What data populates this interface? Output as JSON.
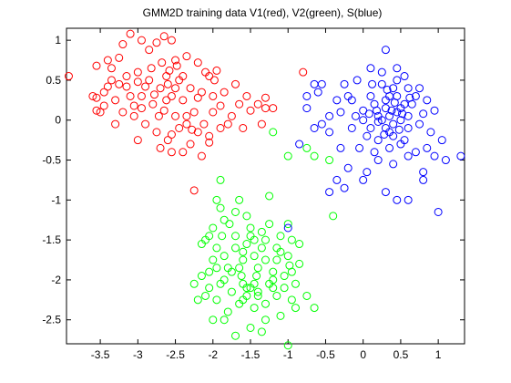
{
  "chart_data": {
    "type": "scatter",
    "title": "GMM2D training data V1(red), V2(green), S(blue)",
    "xlabel": "",
    "ylabel": "",
    "xlim": [
      -3.95,
      1.35
    ],
    "ylim": [
      -2.8,
      1.15
    ],
    "x_ticks": [
      -3.5,
      -3,
      -2.5,
      -2,
      -1.5,
      -1,
      -0.5,
      0,
      0.5,
      1
    ],
    "x_tick_labels": [
      "-3.5",
      "-3",
      "-2.5",
      "-2",
      "-1.5",
      "-1",
      "-0.5",
      "0",
      "0.5",
      "1"
    ],
    "y_ticks": [
      1,
      0.5,
      0,
      -0.5,
      -1,
      -1.5,
      -2,
      -2.5
    ],
    "y_tick_labels": [
      "1",
      "0.5",
      "0",
      "-0.5",
      "-1",
      "-1.5",
      "-2",
      "-2.5"
    ],
    "grid": false,
    "marker": "circle-open",
    "series": [
      {
        "color": "#ff0000",
        "points": [
          [
            -3.92,
            0.55
          ],
          [
            -3.55,
            0.68
          ],
          [
            -3.4,
            0.75
          ],
          [
            -3.35,
            0.65
          ],
          [
            -3.2,
            0.95
          ],
          [
            -3.1,
            1.08
          ],
          [
            -2.95,
            1.0
          ],
          [
            -2.85,
            0.88
          ],
          [
            -2.75,
            0.97
          ],
          [
            -2.65,
            1.05
          ],
          [
            -2.55,
            1.0
          ],
          [
            -2.5,
            0.75
          ],
          [
            -2.58,
            0.62
          ],
          [
            -2.35,
            0.8
          ],
          [
            -2.2,
            0.72
          ],
          [
            -2.1,
            0.6
          ],
          [
            -2.05,
            0.55
          ],
          [
            -1.98,
            0.5
          ],
          [
            -2.15,
            0.35
          ],
          [
            -2.3,
            0.4
          ],
          [
            -2.4,
            0.25
          ],
          [
            -2.55,
            0.3
          ],
          [
            -2.7,
            0.4
          ],
          [
            -2.85,
            0.5
          ],
          [
            -3.0,
            0.6
          ],
          [
            -3.15,
            0.55
          ],
          [
            -3.25,
            0.45
          ],
          [
            -3.35,
            0.5
          ],
          [
            -3.45,
            0.35
          ],
          [
            -3.55,
            0.28
          ],
          [
            -3.3,
            0.25
          ],
          [
            -3.2,
            0.1
          ],
          [
            -3.05,
            0.18
          ],
          [
            -2.95,
            0.3
          ],
          [
            -2.8,
            0.2
          ],
          [
            -2.65,
            0.12
          ],
          [
            -2.5,
            0.05
          ],
          [
            -2.35,
            -0.05
          ],
          [
            -2.2,
            -0.15
          ],
          [
            -2.05,
            -0.2
          ],
          [
            -1.9,
            -0.1
          ],
          [
            -1.75,
            0.05
          ],
          [
            -1.65,
            0.2
          ],
          [
            -1.55,
            0.3
          ],
          [
            -1.4,
            0.2
          ],
          [
            -1.3,
            0.15
          ],
          [
            -1.2,
            0.15
          ],
          [
            -1.35,
            -0.05
          ],
          [
            -1.6,
            -0.1
          ],
          [
            -1.8,
            -0.05
          ],
          [
            -2.0,
            0.1
          ],
          [
            -2.25,
            0.1
          ],
          [
            -2.45,
            -0.1
          ],
          [
            -2.6,
            -0.25
          ],
          [
            -2.75,
            -0.15
          ],
          [
            -3.0,
            -0.25
          ],
          [
            -3.3,
            -0.05
          ],
          [
            -3.5,
            0.1
          ],
          [
            -3.6,
            0.3
          ],
          [
            -2.3,
            -0.3
          ],
          [
            -2.4,
            -0.4
          ],
          [
            -2.15,
            -0.45
          ],
          [
            -2.55,
            -0.4
          ],
          [
            -2.7,
            -0.35
          ],
          [
            -2.9,
            -0.05
          ],
          [
            -2.0,
            0.3
          ],
          [
            -1.85,
            0.35
          ],
          [
            -1.7,
            0.45
          ],
          [
            -3.1,
            0.3
          ],
          [
            -2.62,
            0.55
          ],
          [
            -2.4,
            0.55
          ],
          [
            -2.2,
            0.28
          ],
          [
            -2.95,
            0.15
          ],
          [
            -3.4,
            0.42
          ],
          [
            -3.45,
            0.18
          ],
          [
            -3.55,
            0.12
          ],
          [
            -2.5,
            0.4
          ],
          [
            -2.45,
            0.5
          ],
          [
            -2.6,
            0.45
          ],
          [
            -2.78,
            0.32
          ],
          [
            -2.9,
            0.42
          ],
          [
            -3.05,
            0.05
          ],
          [
            -1.5,
            0.12
          ],
          [
            -2.28,
            -0.12
          ],
          [
            -1.9,
            0.18
          ],
          [
            -2.35,
            0.05
          ],
          [
            -2.12,
            -0.05
          ],
          [
            -2.25,
            -0.88
          ],
          [
            -0.8,
            0.6
          ],
          [
            -1.3,
            0.28
          ],
          [
            -1.95,
            0.62
          ],
          [
            -2.68,
            0.72
          ],
          [
            -2.48,
            0.68
          ],
          [
            -3.25,
            0.78
          ],
          [
            -2.82,
            0.65
          ],
          [
            -2.62,
            0.25
          ],
          [
            -2.72,
            0.05
          ],
          [
            -2.55,
            -0.18
          ],
          [
            -3.0,
            0.48
          ],
          [
            -3.15,
            0.42
          ],
          [
            -2.05,
            -0.28
          ]
        ]
      },
      {
        "color": "#00ff00",
        "points": [
          [
            -1.2,
            -0.15
          ],
          [
            -1.0,
            -0.45
          ],
          [
            -0.75,
            -0.35
          ],
          [
            -0.65,
            -0.45
          ],
          [
            -0.45,
            -0.5
          ],
          [
            -0.4,
            -1.2
          ],
          [
            -1.0,
            -1.3
          ],
          [
            -0.85,
            -1.55
          ],
          [
            -1.1,
            -1.65
          ],
          [
            -1.3,
            -1.5
          ],
          [
            -1.5,
            -1.35
          ],
          [
            -1.7,
            -1.45
          ],
          [
            -1.85,
            -1.25
          ],
          [
            -2.0,
            -1.35
          ],
          [
            -2.15,
            -1.55
          ],
          [
            -2.0,
            -1.75
          ],
          [
            -1.8,
            -1.85
          ],
          [
            -1.6,
            -1.75
          ],
          [
            -1.4,
            -1.85
          ],
          [
            -1.2,
            -1.9
          ],
          [
            -1.05,
            -1.95
          ],
          [
            -0.9,
            -2.05
          ],
          [
            -0.75,
            -2.2
          ],
          [
            -0.9,
            -2.35
          ],
          [
            -1.1,
            -2.45
          ],
          [
            -1.3,
            -2.5
          ],
          [
            -1.5,
            -2.6
          ],
          [
            -1.45,
            -2.35
          ],
          [
            -1.6,
            -2.25
          ],
          [
            -1.75,
            -2.15
          ],
          [
            -1.9,
            -2.05
          ],
          [
            -2.05,
            -2.1
          ],
          [
            -2.2,
            -2.25
          ],
          [
            -2.15,
            -1.95
          ],
          [
            -1.95,
            -1.85
          ],
          [
            -1.7,
            -1.6
          ],
          [
            -1.55,
            -1.55
          ],
          [
            -1.35,
            -1.6
          ],
          [
            -1.15,
            -1.75
          ],
          [
            -0.98,
            -1.82
          ],
          [
            -1.25,
            -2.05
          ],
          [
            -1.4,
            -2.15
          ],
          [
            -1.55,
            -2.1
          ],
          [
            -1.65,
            -2.3
          ],
          [
            -1.8,
            -2.4
          ],
          [
            -2.0,
            -2.5
          ],
          [
            -1.35,
            -2.65
          ],
          [
            -1.0,
            -2.82
          ],
          [
            -0.65,
            -2.35
          ],
          [
            -0.85,
            -1.8
          ],
          [
            -1.65,
            -1.0
          ],
          [
            -1.25,
            -0.95
          ],
          [
            -1.9,
            -0.75
          ],
          [
            -1.95,
            -1.0
          ],
          [
            -2.1,
            -1.5
          ],
          [
            -1.85,
            -2.5
          ],
          [
            -1.7,
            -2.7
          ],
          [
            -1.3,
            -2.3
          ],
          [
            -1.15,
            -2.2
          ],
          [
            -0.95,
            -2.25
          ],
          [
            -1.5,
            -2.1
          ],
          [
            -1.45,
            -2.05
          ],
          [
            -1.6,
            -2.05
          ],
          [
            -1.55,
            -2.2
          ],
          [
            -1.4,
            -2.2
          ],
          [
            -1.2,
            -2.1
          ],
          [
            -1.75,
            -1.9
          ],
          [
            -1.62,
            -1.95
          ],
          [
            -1.95,
            -1.6
          ],
          [
            -2.05,
            -1.45
          ],
          [
            -1.88,
            -1.45
          ],
          [
            -1.78,
            -1.3
          ],
          [
            -1.55,
            -1.2
          ],
          [
            -1.45,
            -1.5
          ],
          [
            -1.25,
            -1.3
          ],
          [
            -1.1,
            -1.45
          ],
          [
            -0.95,
            -1.5
          ],
          [
            -1.0,
            -1.7
          ],
          [
            -1.3,
            -1.75
          ],
          [
            -1.45,
            -1.7
          ],
          [
            -1.6,
            -1.65
          ],
          [
            -1.85,
            -1.7
          ],
          [
            -2.05,
            -1.9
          ],
          [
            -2.25,
            -2.05
          ],
          [
            -2.1,
            -2.2
          ],
          [
            -1.95,
            -2.25
          ],
          [
            -1.85,
            -2.0
          ],
          [
            -1.65,
            -1.85
          ],
          [
            -1.42,
            -1.95
          ],
          [
            -1.2,
            -2.0
          ],
          [
            -1.05,
            -2.1
          ],
          [
            -0.95,
            -1.9
          ],
          [
            -1.15,
            -1.6
          ],
          [
            -1.35,
            -1.4
          ],
          [
            -1.5,
            -1.45
          ],
          [
            -1.7,
            -1.15
          ],
          [
            -1.9,
            -1.1
          ]
        ]
      },
      {
        "color": "#0000ff",
        "points": [
          [
            -1.0,
            -1.35
          ],
          [
            0.1,
            0.65
          ],
          [
            0.3,
            0.88
          ],
          [
            0.45,
            0.65
          ],
          [
            0.55,
            0.55
          ],
          [
            0.7,
            0.3
          ],
          [
            0.85,
            0.25
          ],
          [
            0.95,
            0.12
          ],
          [
            0.8,
            0.08
          ],
          [
            0.6,
            0.05
          ],
          [
            0.45,
            0.1
          ],
          [
            0.3,
            0.15
          ],
          [
            0.2,
            0.05
          ],
          [
            0.1,
            0.3
          ],
          [
            0.0,
            0.12
          ],
          [
            -0.1,
            0.05
          ],
          [
            -0.2,
            0.3
          ],
          [
            -0.35,
            0.25
          ],
          [
            -0.55,
            0.45
          ],
          [
            -0.65,
            0.45
          ],
          [
            -0.75,
            0.3
          ],
          [
            -0.85,
            -0.3
          ],
          [
            -0.65,
            -0.1
          ],
          [
            -0.55,
            -0.05
          ],
          [
            -0.45,
            -0.15
          ],
          [
            -0.3,
            -0.35
          ],
          [
            -0.15,
            -0.1
          ],
          [
            0.05,
            -0.2
          ],
          [
            0.2,
            -0.25
          ],
          [
            0.35,
            -0.15
          ],
          [
            0.5,
            -0.3
          ],
          [
            0.6,
            -0.1
          ],
          [
            0.75,
            -0.05
          ],
          [
            0.9,
            -0.15
          ],
          [
            1.05,
            -0.25
          ],
          [
            1.1,
            -0.5
          ],
          [
            0.8,
            -0.65
          ],
          [
            0.6,
            -0.45
          ],
          [
            0.4,
            -0.55
          ],
          [
            0.2,
            -0.5
          ],
          [
            0.05,
            -0.65
          ],
          [
            -0.2,
            -0.6
          ],
          [
            -0.35,
            -0.75
          ],
          [
            -0.45,
            -0.9
          ],
          [
            -0.25,
            -0.85
          ],
          [
            0.0,
            -0.75
          ],
          [
            0.3,
            -0.9
          ],
          [
            0.45,
            -1.0
          ],
          [
            0.6,
            -1.0
          ],
          [
            0.8,
            -0.75
          ],
          [
            1.0,
            -1.15
          ],
          [
            1.3,
            -0.45
          ],
          [
            0.25,
            0.0
          ],
          [
            0.35,
            0.05
          ],
          [
            0.4,
            -0.05
          ],
          [
            0.5,
            0.15
          ],
          [
            0.55,
            0.2
          ],
          [
            0.15,
            0.2
          ],
          [
            0.3,
            0.25
          ],
          [
            0.45,
            0.3
          ],
          [
            0.35,
            0.3
          ],
          [
            0.25,
            0.45
          ],
          [
            0.65,
            0.2
          ],
          [
            0.4,
            0.4
          ],
          [
            0.5,
            0.0
          ],
          [
            0.3,
            -0.1
          ],
          [
            0.2,
            -0.02
          ],
          [
            0.1,
            -0.1
          ],
          [
            0.0,
            0.0
          ],
          [
            -0.15,
            0.25
          ],
          [
            -0.3,
            0.1
          ],
          [
            -0.45,
            0.05
          ],
          [
            -0.6,
            0.35
          ],
          [
            -0.75,
            0.15
          ],
          [
            -0.05,
            -0.35
          ],
          [
            0.15,
            -0.4
          ],
          [
            0.35,
            -0.35
          ],
          [
            0.55,
            -0.25
          ],
          [
            0.7,
            -0.4
          ],
          [
            0.85,
            -0.35
          ],
          [
            0.95,
            -0.45
          ],
          [
            0.6,
            0.4
          ],
          [
            0.75,
            0.4
          ],
          [
            0.45,
            0.5
          ],
          [
            0.25,
            0.6
          ],
          [
            0.12,
            0.45
          ],
          [
            -0.08,
            0.5
          ],
          [
            -0.25,
            0.45
          ],
          [
            0.4,
            -0.2
          ],
          [
            0.28,
            -0.18
          ],
          [
            0.18,
            0.12
          ],
          [
            0.08,
            0.08
          ],
          [
            0.38,
            0.12
          ],
          [
            0.52,
            0.08
          ],
          [
            0.62,
            0.28
          ],
          [
            0.48,
            -0.12
          ],
          [
            0.32,
            0.38
          ],
          [
            0.42,
            0.22
          ]
        ]
      }
    ]
  }
}
